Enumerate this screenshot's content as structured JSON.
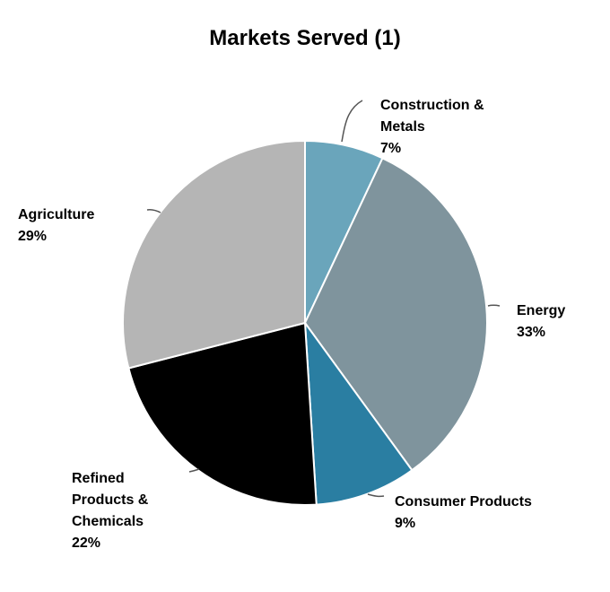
{
  "chart_data": {
    "type": "pie",
    "title": "Markets Served (1)",
    "slices": [
      {
        "label_lines": [
          "Construction &",
          "Metals"
        ],
        "pct_label": "7%",
        "value": 7,
        "color": "#6aa5bb"
      },
      {
        "label_lines": [
          "Energy"
        ],
        "pct_label": "33%",
        "value": 33,
        "color": "#7f949d"
      },
      {
        "label_lines": [
          "Consumer Products"
        ],
        "pct_label": "9%",
        "value": 9,
        "color": "#2a7ea2"
      },
      {
        "label_lines": [
          "Refined",
          "Products &",
          "Chemicals"
        ],
        "pct_label": "22%",
        "value": 22,
        "color": "#000000"
      },
      {
        "label_lines": [
          "Agriculture"
        ],
        "pct_label": "29%",
        "value": 29,
        "color": "#b5b5b5"
      }
    ],
    "start_angle": "12 o'clock",
    "direction": "clockwise",
    "legend": "none"
  }
}
